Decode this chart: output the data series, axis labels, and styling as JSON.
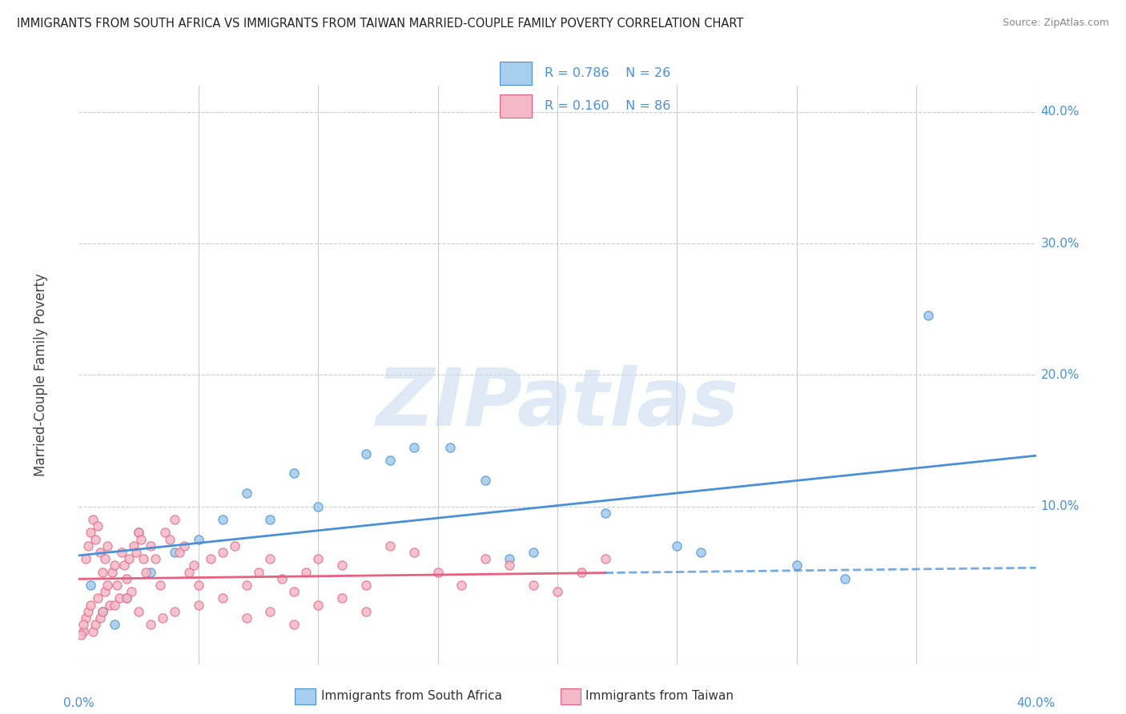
{
  "title": "IMMIGRANTS FROM SOUTH AFRICA VS IMMIGRANTS FROM TAIWAN MARRIED-COUPLE FAMILY POVERTY CORRELATION CHART",
  "source": "Source: ZipAtlas.com",
  "ylabel": "Married-Couple Family Poverty",
  "xlim": [
    0.0,
    0.4
  ],
  "ylim": [
    -0.02,
    0.42
  ],
  "legend1_R": "0.786",
  "legend1_N": "26",
  "legend2_R": "0.160",
  "legend2_N": "86",
  "blue_color": "#A8CEED",
  "pink_color": "#F4B8C8",
  "blue_line_color": "#4A90D9",
  "pink_line_color": "#E86080",
  "blue_scatter": [
    [
      0.01,
      0.02
    ],
    [
      0.02,
      0.03
    ],
    [
      0.015,
      0.01
    ],
    [
      0.005,
      0.04
    ],
    [
      0.03,
      0.05
    ],
    [
      0.025,
      0.08
    ],
    [
      0.04,
      0.065
    ],
    [
      0.05,
      0.075
    ],
    [
      0.06,
      0.09
    ],
    [
      0.07,
      0.11
    ],
    [
      0.08,
      0.09
    ],
    [
      0.09,
      0.125
    ],
    [
      0.1,
      0.1
    ],
    [
      0.12,
      0.14
    ],
    [
      0.13,
      0.135
    ],
    [
      0.14,
      0.145
    ],
    [
      0.155,
      0.145
    ],
    [
      0.17,
      0.12
    ],
    [
      0.18,
      0.06
    ],
    [
      0.19,
      0.065
    ],
    [
      0.22,
      0.095
    ],
    [
      0.25,
      0.07
    ],
    [
      0.26,
      0.065
    ],
    [
      0.3,
      0.055
    ],
    [
      0.32,
      0.045
    ],
    [
      0.355,
      0.245
    ]
  ],
  "pink_scatter": [
    [
      0.002,
      0.005
    ],
    [
      0.003,
      0.015
    ],
    [
      0.004,
      0.02
    ],
    [
      0.005,
      0.025
    ],
    [
      0.006,
      0.005
    ],
    [
      0.007,
      0.01
    ],
    [
      0.008,
      0.03
    ],
    [
      0.009,
      0.015
    ],
    [
      0.01,
      0.02
    ],
    [
      0.011,
      0.035
    ],
    [
      0.012,
      0.04
    ],
    [
      0.013,
      0.025
    ],
    [
      0.014,
      0.05
    ],
    [
      0.015,
      0.055
    ],
    [
      0.016,
      0.04
    ],
    [
      0.017,
      0.03
    ],
    [
      0.018,
      0.065
    ],
    [
      0.019,
      0.055
    ],
    [
      0.02,
      0.045
    ],
    [
      0.021,
      0.06
    ],
    [
      0.022,
      0.035
    ],
    [
      0.023,
      0.07
    ],
    [
      0.024,
      0.065
    ],
    [
      0.025,
      0.08
    ],
    [
      0.026,
      0.075
    ],
    [
      0.027,
      0.06
    ],
    [
      0.028,
      0.05
    ],
    [
      0.03,
      0.07
    ],
    [
      0.032,
      0.06
    ],
    [
      0.034,
      0.04
    ],
    [
      0.036,
      0.08
    ],
    [
      0.038,
      0.075
    ],
    [
      0.04,
      0.09
    ],
    [
      0.042,
      0.065
    ],
    [
      0.044,
      0.07
    ],
    [
      0.046,
      0.05
    ],
    [
      0.048,
      0.055
    ],
    [
      0.05,
      0.04
    ],
    [
      0.055,
      0.06
    ],
    [
      0.06,
      0.065
    ],
    [
      0.065,
      0.07
    ],
    [
      0.07,
      0.04
    ],
    [
      0.075,
      0.05
    ],
    [
      0.08,
      0.06
    ],
    [
      0.085,
      0.045
    ],
    [
      0.09,
      0.035
    ],
    [
      0.095,
      0.05
    ],
    [
      0.1,
      0.06
    ],
    [
      0.11,
      0.055
    ],
    [
      0.12,
      0.04
    ],
    [
      0.13,
      0.07
    ],
    [
      0.14,
      0.065
    ],
    [
      0.15,
      0.05
    ],
    [
      0.16,
      0.04
    ],
    [
      0.17,
      0.06
    ],
    [
      0.18,
      0.055
    ],
    [
      0.19,
      0.04
    ],
    [
      0.2,
      0.035
    ],
    [
      0.21,
      0.05
    ],
    [
      0.22,
      0.06
    ],
    [
      0.003,
      0.06
    ],
    [
      0.004,
      0.07
    ],
    [
      0.005,
      0.08
    ],
    [
      0.006,
      0.09
    ],
    [
      0.007,
      0.075
    ],
    [
      0.008,
      0.085
    ],
    [
      0.009,
      0.065
    ],
    [
      0.01,
      0.05
    ],
    [
      0.011,
      0.06
    ],
    [
      0.012,
      0.07
    ],
    [
      0.001,
      0.002
    ],
    [
      0.002,
      0.01
    ],
    [
      0.015,
      0.025
    ],
    [
      0.02,
      0.03
    ],
    [
      0.025,
      0.02
    ],
    [
      0.03,
      0.01
    ],
    [
      0.035,
      0.015
    ],
    [
      0.04,
      0.02
    ],
    [
      0.05,
      0.025
    ],
    [
      0.06,
      0.03
    ],
    [
      0.07,
      0.015
    ],
    [
      0.08,
      0.02
    ],
    [
      0.09,
      0.01
    ],
    [
      0.1,
      0.025
    ],
    [
      0.11,
      0.03
    ],
    [
      0.12,
      0.02
    ]
  ],
  "watermark": "ZIPatlas",
  "background_color": "#ffffff",
  "grid_color": "#cccccc",
  "ytick_positions": [
    0.1,
    0.2,
    0.3,
    0.4
  ],
  "ytick_labels": [
    "10.0%",
    "20.0%",
    "30.0%",
    "40.0%"
  ],
  "xtick_left_label": "0.0%",
  "xtick_right_label": "40.0%"
}
